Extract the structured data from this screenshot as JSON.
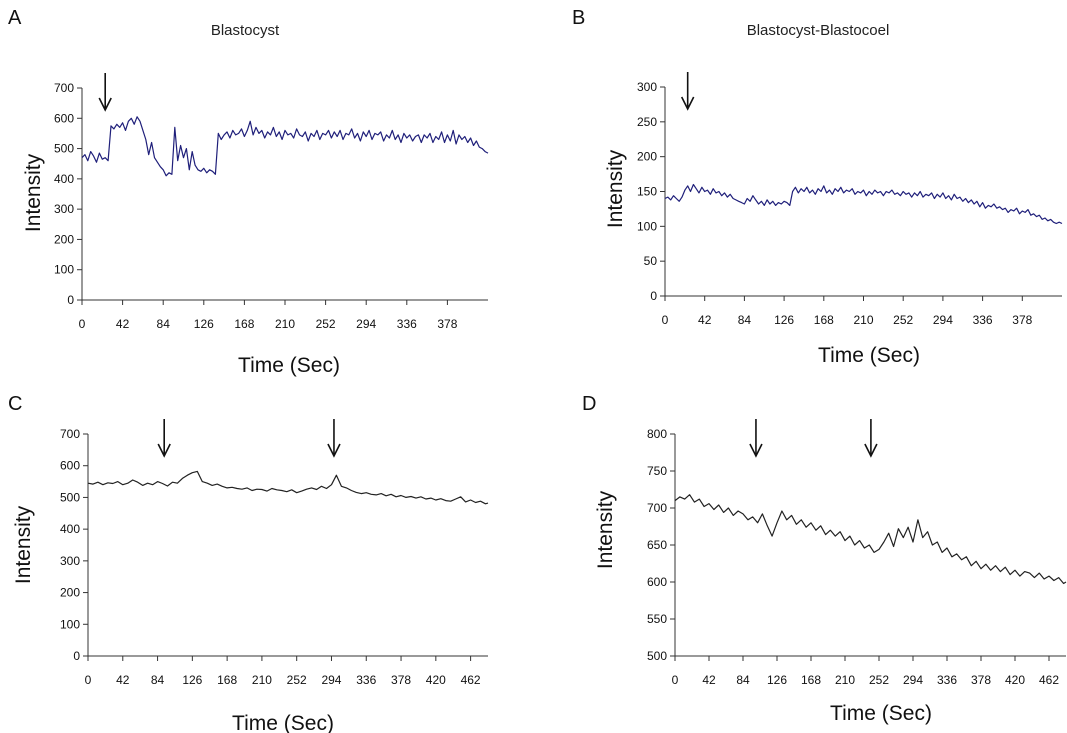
{
  "figure": {
    "panels": [
      {
        "letter": "A",
        "title": "Blastocyst",
        "xlabel": "Time (Sec)",
        "ylabel": "Intensity"
      },
      {
        "letter": "B",
        "title": "Blastocyst-Blastocoel",
        "xlabel": "Time (Sec)",
        "ylabel": "Intensity"
      },
      {
        "letter": "C",
        "title": "",
        "xlabel": "Time (Sec)",
        "ylabel": "Intensity"
      },
      {
        "letter": "D",
        "title": "",
        "xlabel": "Time (Sec)",
        "ylabel": "Intensity"
      }
    ]
  },
  "chart_data": [
    {
      "type": "line",
      "title": "Blastocyst",
      "xlabel": "Time (Sec)",
      "ylabel": "Intensity",
      "color": "#1f1f7a",
      "xlim": [
        0,
        420
      ],
      "ylim": [
        0,
        700
      ],
      "xticks": [
        0,
        42,
        84,
        126,
        168,
        210,
        252,
        294,
        336,
        378
      ],
      "yticks": [
        0,
        100,
        200,
        300,
        400,
        500,
        600,
        700
      ],
      "arrows_x": [
        24
      ],
      "series": [
        {
          "name": "",
          "x": [
            0,
            3,
            6,
            9,
            12,
            15,
            18,
            21,
            24,
            27,
            30,
            33,
            36,
            39,
            42,
            45,
            48,
            51,
            54,
            57,
            60,
            63,
            66,
            69,
            72,
            75,
            78,
            81,
            84,
            87,
            90,
            93,
            96,
            99,
            102,
            105,
            108,
            111,
            114,
            117,
            120,
            123,
            126,
            129,
            132,
            135,
            138,
            141,
            144,
            147,
            150,
            153,
            156,
            159,
            162,
            165,
            168,
            171,
            174,
            177,
            180,
            183,
            186,
            189,
            192,
            195,
            198,
            201,
            204,
            207,
            210,
            213,
            216,
            219,
            222,
            225,
            228,
            231,
            234,
            237,
            240,
            243,
            246,
            249,
            252,
            255,
            258,
            261,
            264,
            267,
            270,
            273,
            276,
            279,
            282,
            285,
            288,
            291,
            294,
            297,
            300,
            303,
            306,
            309,
            312,
            315,
            318,
            321,
            324,
            327,
            330,
            333,
            336,
            339,
            342,
            345,
            348,
            351,
            354,
            357,
            360,
            363,
            366,
            369,
            372,
            375,
            378,
            381,
            384,
            387,
            390,
            393,
            396,
            399,
            402,
            405,
            408,
            411,
            414,
            417,
            420
          ],
          "y": [
            470,
            480,
            460,
            490,
            475,
            455,
            485,
            465,
            470,
            460,
            575,
            565,
            580,
            570,
            585,
            560,
            590,
            600,
            580,
            605,
            590,
            560,
            530,
            480,
            520,
            470,
            455,
            440,
            430,
            410,
            420,
            415,
            570,
            460,
            510,
            470,
            500,
            430,
            490,
            445,
            430,
            425,
            435,
            420,
            430,
            425,
            415,
            550,
            530,
            545,
            555,
            535,
            560,
            545,
            550,
            565,
            540,
            560,
            590,
            545,
            570,
            550,
            560,
            535,
            555,
            545,
            570,
            540,
            555,
            530,
            560,
            545,
            550,
            535,
            565,
            545,
            540,
            555,
            525,
            550,
            540,
            560,
            530,
            550,
            545,
            560,
            535,
            555,
            540,
            560,
            530,
            550,
            545,
            565,
            535,
            550,
            525,
            555,
            540,
            560,
            530,
            550,
            545,
            555,
            525,
            545,
            535,
            560,
            530,
            545,
            520,
            550,
            535,
            545,
            525,
            540,
            545,
            520,
            545,
            535,
            550,
            520,
            540,
            530,
            555,
            520,
            545,
            525,
            560,
            515,
            545,
            530,
            540,
            520,
            535,
            510,
            525,
            505,
            500,
            490,
            485
          ]
        }
      ]
    },
    {
      "type": "line",
      "title": "Blastocyst-Blastocoel",
      "xlabel": "Time (Sec)",
      "ylabel": "Intensity",
      "color": "#1f1f7a",
      "xlim": [
        0,
        420
      ],
      "ylim": [
        0,
        300
      ],
      "xticks": [
        0,
        42,
        84,
        126,
        168,
        210,
        252,
        294,
        336,
        378
      ],
      "yticks": [
        0,
        50,
        100,
        150,
        200,
        250,
        300
      ],
      "arrows_x": [
        24
      ],
      "series": [
        {
          "name": "",
          "x": [
            0,
            3,
            6,
            9,
            12,
            15,
            18,
            21,
            24,
            27,
            30,
            33,
            36,
            39,
            42,
            45,
            48,
            51,
            54,
            57,
            60,
            63,
            66,
            69,
            72,
            75,
            78,
            81,
            84,
            87,
            90,
            93,
            96,
            99,
            102,
            105,
            108,
            111,
            114,
            117,
            120,
            123,
            126,
            129,
            132,
            135,
            138,
            141,
            144,
            147,
            150,
            153,
            156,
            159,
            162,
            165,
            168,
            171,
            174,
            177,
            180,
            183,
            186,
            189,
            192,
            195,
            198,
            201,
            204,
            207,
            210,
            213,
            216,
            219,
            222,
            225,
            228,
            231,
            234,
            237,
            240,
            243,
            246,
            249,
            252,
            255,
            258,
            261,
            264,
            267,
            270,
            273,
            276,
            279,
            282,
            285,
            288,
            291,
            294,
            297,
            300,
            303,
            306,
            309,
            312,
            315,
            318,
            321,
            324,
            327,
            330,
            333,
            336,
            339,
            342,
            345,
            348,
            351,
            354,
            357,
            360,
            363,
            366,
            369,
            372,
            375,
            378,
            381,
            384,
            387,
            390,
            393,
            396,
            399,
            402,
            405,
            408,
            411,
            414,
            417,
            420
          ],
          "y": [
            140,
            142,
            138,
            144,
            140,
            136,
            142,
            152,
            158,
            150,
            160,
            154,
            148,
            156,
            150,
            152,
            146,
            154,
            148,
            150,
            144,
            148,
            142,
            146,
            140,
            138,
            136,
            134,
            132,
            140,
            136,
            144,
            138,
            132,
            136,
            130,
            138,
            132,
            136,
            130,
            134,
            132,
            136,
            134,
            130,
            150,
            156,
            148,
            154,
            150,
            156,
            148,
            152,
            146,
            154,
            150,
            158,
            148,
            152,
            146,
            154,
            150,
            156,
            148,
            152,
            150,
            154,
            146,
            150,
            148,
            152,
            144,
            150,
            146,
            152,
            148,
            150,
            144,
            150,
            148,
            152,
            146,
            148,
            144,
            150,
            146,
            148,
            142,
            148,
            144,
            150,
            142,
            146,
            144,
            148,
            140,
            146,
            142,
            148,
            140,
            144,
            138,
            146,
            140,
            142,
            136,
            140,
            134,
            138,
            132,
            136,
            128,
            134,
            126,
            130,
            128,
            132,
            126,
            128,
            124,
            126,
            120,
            124,
            122,
            126,
            118,
            122,
            120,
            124,
            116,
            118,
            114,
            116,
            110,
            112,
            108,
            110,
            106,
            104,
            106,
            104
          ]
        }
      ]
    },
    {
      "type": "line",
      "title": "",
      "xlabel": "Time (Sec)",
      "ylabel": "Intensity",
      "color": "#222222",
      "xlim": [
        0,
        483
      ],
      "ylim": [
        0,
        700
      ],
      "xticks": [
        0,
        42,
        84,
        126,
        168,
        210,
        252,
        294,
        336,
        378,
        420,
        462
      ],
      "yticks": [
        0,
        100,
        200,
        300,
        400,
        500,
        600,
        700
      ],
      "arrows_x": [
        92,
        297
      ],
      "series": [
        {
          "name": "",
          "x": [
            0,
            6,
            12,
            18,
            24,
            30,
            36,
            42,
            48,
            54,
            60,
            66,
            72,
            78,
            84,
            90,
            96,
            102,
            108,
            114,
            120,
            126,
            132,
            138,
            144,
            150,
            156,
            162,
            168,
            174,
            180,
            186,
            192,
            198,
            204,
            210,
            216,
            222,
            228,
            234,
            240,
            246,
            252,
            258,
            264,
            270,
            276,
            282,
            288,
            294,
            300,
            306,
            312,
            318,
            324,
            330,
            336,
            342,
            348,
            354,
            360,
            366,
            372,
            378,
            384,
            390,
            396,
            402,
            408,
            414,
            420,
            426,
            432,
            438,
            444,
            450,
            456,
            462,
            468,
            474,
            480,
            483
          ],
          "y": [
            545,
            542,
            548,
            540,
            546,
            544,
            550,
            540,
            545,
            555,
            548,
            538,
            545,
            540,
            550,
            544,
            536,
            548,
            545,
            560,
            570,
            578,
            582,
            550,
            545,
            538,
            542,
            535,
            530,
            532,
            528,
            526,
            530,
            522,
            526,
            525,
            520,
            528,
            524,
            522,
            518,
            524,
            515,
            520,
            526,
            530,
            525,
            535,
            528,
            540,
            570,
            535,
            530,
            522,
            516,
            512,
            515,
            510,
            508,
            512,
            505,
            510,
            502,
            506,
            500,
            503,
            498,
            502,
            495,
            498,
            492,
            496,
            490,
            488,
            495,
            502,
            486,
            492,
            484,
            488,
            480,
            482
          ]
        }
      ]
    },
    {
      "type": "line",
      "title": "",
      "xlabel": "Time (Sec)",
      "ylabel": "Intensity",
      "color": "#222222",
      "xlim": [
        0,
        483
      ],
      "ylim": [
        500,
        800
      ],
      "xticks": [
        0,
        42,
        84,
        126,
        168,
        210,
        252,
        294,
        336,
        378,
        420,
        462
      ],
      "yticks": [
        500,
        550,
        600,
        650,
        700,
        750,
        800
      ],
      "arrows_x": [
        100,
        242
      ],
      "series": [
        {
          "name": "",
          "x": [
            0,
            6,
            12,
            18,
            24,
            30,
            36,
            42,
            48,
            54,
            60,
            66,
            72,
            78,
            84,
            90,
            96,
            102,
            108,
            114,
            120,
            126,
            132,
            138,
            144,
            150,
            156,
            162,
            168,
            174,
            180,
            186,
            192,
            198,
            204,
            210,
            216,
            222,
            228,
            234,
            240,
            246,
            252,
            258,
            264,
            270,
            276,
            282,
            288,
            294,
            300,
            306,
            312,
            318,
            324,
            330,
            336,
            342,
            348,
            354,
            360,
            366,
            372,
            378,
            384,
            390,
            396,
            402,
            408,
            414,
            420,
            426,
            432,
            438,
            444,
            450,
            456,
            462,
            468,
            474,
            480,
            483
          ],
          "y": [
            710,
            715,
            712,
            718,
            708,
            712,
            702,
            706,
            698,
            704,
            694,
            700,
            690,
            696,
            692,
            684,
            688,
            680,
            692,
            676,
            662,
            680,
            696,
            684,
            690,
            678,
            684,
            674,
            680,
            670,
            676,
            664,
            670,
            662,
            668,
            656,
            662,
            650,
            656,
            646,
            650,
            640,
            644,
            654,
            666,
            648,
            672,
            660,
            674,
            654,
            684,
            660,
            668,
            650,
            654,
            640,
            646,
            634,
            638,
            630,
            634,
            622,
            628,
            618,
            624,
            616,
            622,
            614,
            620,
            610,
            616,
            608,
            614,
            612,
            606,
            612,
            604,
            608,
            602,
            606,
            598,
            600
          ]
        }
      ]
    }
  ]
}
